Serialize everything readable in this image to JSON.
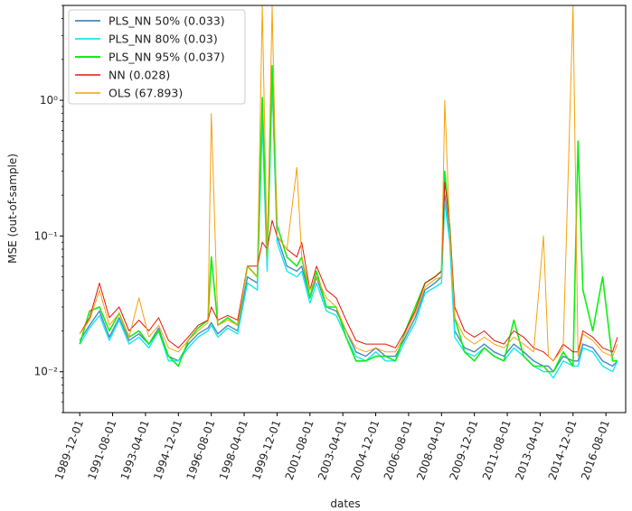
{
  "chart_data": {
    "type": "line",
    "title": "",
    "xlabel": "dates",
    "ylabel": "MSE (out-of-sample)",
    "yscale": "log",
    "ylim": [
      0.005,
      5.0
    ],
    "xlim": [
      "1989-02-01",
      "2017-08-01"
    ],
    "grid": false,
    "legend_position": "top-left",
    "y_ticks": [
      {
        "value": 0.01,
        "label": "10⁻²"
      },
      {
        "value": 0.1,
        "label": "10⁻¹"
      },
      {
        "value": 1,
        "label": "10⁰"
      }
    ],
    "x_ticks": [
      "1989-12-01",
      "1991-08-01",
      "1993-04-01",
      "1994-12-01",
      "1996-08-01",
      "1998-04-01",
      "1999-12-01",
      "2001-08-01",
      "2003-04-01",
      "2004-12-01",
      "2006-08-01",
      "2008-04-01",
      "2009-12-01",
      "2011-08-01",
      "2013-04-01",
      "2014-12-01",
      "2016-08-01"
    ],
    "dates": [
      "1989-12-01",
      "1990-06-01",
      "1990-12-01",
      "1991-06-01",
      "1991-12-01",
      "1992-06-01",
      "1992-12-01",
      "1993-06-01",
      "1993-12-01",
      "1994-06-01",
      "1994-12-01",
      "1995-06-01",
      "1995-12-01",
      "1996-06-01",
      "1996-08-01",
      "1996-12-01",
      "1997-06-01",
      "1997-12-01",
      "1998-06-01",
      "1998-12-01",
      "1999-03-01",
      "1999-06-01",
      "1999-09-01",
      "1999-12-01",
      "2000-06-01",
      "2000-12-01",
      "2001-03-01",
      "2001-08-01",
      "2001-12-01",
      "2002-06-01",
      "2002-12-01",
      "2003-06-01",
      "2003-12-01",
      "2004-06-01",
      "2004-12-01",
      "2005-06-01",
      "2005-12-01",
      "2006-06-01",
      "2006-12-01",
      "2007-06-01",
      "2007-12-01",
      "2008-04-01",
      "2008-06-01",
      "2008-09-01",
      "2008-12-01",
      "2009-06-01",
      "2009-12-01",
      "2010-06-01",
      "2010-12-01",
      "2011-06-01",
      "2011-12-01",
      "2012-06-01",
      "2012-12-01",
      "2013-06-01",
      "2013-09-01",
      "2013-12-01",
      "2014-06-01",
      "2014-12-01",
      "2015-03-01",
      "2015-06-01",
      "2015-12-01",
      "2016-06-01",
      "2016-12-01",
      "2017-03-01"
    ],
    "series": [
      {
        "name": "PLS_NN 50% (0.033)",
        "color": "#4a88c0",
        "width": 1.4,
        "values": [
          0.017,
          0.022,
          0.028,
          0.018,
          0.025,
          0.017,
          0.019,
          0.016,
          0.021,
          0.013,
          0.012,
          0.016,
          0.019,
          0.021,
          0.023,
          0.019,
          0.022,
          0.02,
          0.05,
          0.045,
          0.8,
          0.06,
          1.5,
          0.1,
          0.06,
          0.055,
          0.06,
          0.035,
          0.05,
          0.03,
          0.028,
          0.02,
          0.014,
          0.013,
          0.015,
          0.013,
          0.013,
          0.018,
          0.025,
          0.04,
          0.045,
          0.05,
          0.2,
          0.1,
          0.02,
          0.015,
          0.014,
          0.016,
          0.014,
          0.013,
          0.016,
          0.014,
          0.012,
          0.011,
          0.011,
          0.01,
          0.013,
          0.012,
          0.012,
          0.016,
          0.015,
          0.012,
          0.011,
          0.012
        ]
      },
      {
        "name": "PLS_NN 80% (0.03)",
        "color": "#17e8f2",
        "width": 1.4,
        "values": [
          0.016,
          0.021,
          0.026,
          0.017,
          0.024,
          0.016,
          0.018,
          0.015,
          0.02,
          0.012,
          0.012,
          0.015,
          0.018,
          0.02,
          0.022,
          0.018,
          0.021,
          0.019,
          0.045,
          0.04,
          0.7,
          0.055,
          1.4,
          0.09,
          0.055,
          0.05,
          0.055,
          0.032,
          0.045,
          0.028,
          0.026,
          0.018,
          0.013,
          0.012,
          0.014,
          0.012,
          0.012,
          0.017,
          0.023,
          0.038,
          0.042,
          0.045,
          0.18,
          0.09,
          0.018,
          0.014,
          0.013,
          0.015,
          0.013,
          0.012,
          0.015,
          0.013,
          0.011,
          0.01,
          0.01,
          0.009,
          0.012,
          0.011,
          0.011,
          0.015,
          0.014,
          0.011,
          0.01,
          0.012
        ]
      },
      {
        "name": "PLS_NN 95% (0.037)",
        "color": "#10ee10",
        "width": 1.6,
        "values": [
          0.016,
          0.028,
          0.03,
          0.02,
          0.027,
          0.018,
          0.02,
          0.016,
          0.02,
          0.013,
          0.011,
          0.017,
          0.021,
          0.024,
          0.07,
          0.022,
          0.025,
          0.022,
          0.06,
          0.05,
          1.05,
          0.07,
          1.8,
          0.12,
          0.07,
          0.06,
          0.07,
          0.035,
          0.055,
          0.03,
          0.03,
          0.018,
          0.012,
          0.012,
          0.013,
          0.013,
          0.012,
          0.02,
          0.03,
          0.045,
          0.05,
          0.055,
          0.3,
          0.12,
          0.025,
          0.014,
          0.012,
          0.015,
          0.013,
          0.012,
          0.024,
          0.013,
          0.011,
          0.011,
          0.01,
          0.01,
          0.014,
          0.011,
          0.5,
          0.04,
          0.02,
          0.05,
          0.012,
          0.012
        ]
      },
      {
        "name": "NN (0.028)",
        "color": "#e8140e",
        "width": 1.0,
        "values": [
          0.019,
          0.025,
          0.045,
          0.025,
          0.03,
          0.02,
          0.024,
          0.02,
          0.025,
          0.017,
          0.015,
          0.018,
          0.022,
          0.024,
          0.03,
          0.024,
          0.026,
          0.024,
          0.06,
          0.06,
          0.09,
          0.08,
          0.13,
          0.1,
          0.08,
          0.07,
          0.09,
          0.04,
          0.06,
          0.04,
          0.035,
          0.024,
          0.017,
          0.016,
          0.016,
          0.016,
          0.015,
          0.02,
          0.028,
          0.045,
          0.05,
          0.055,
          0.25,
          0.12,
          0.03,
          0.02,
          0.018,
          0.02,
          0.017,
          0.016,
          0.02,
          0.018,
          0.015,
          0.014,
          0.013,
          0.012,
          0.016,
          0.014,
          0.014,
          0.02,
          0.018,
          0.015,
          0.014,
          0.018
        ]
      },
      {
        "name": "OLS (67.893)",
        "color": "#f5a20a",
        "width": 1.0,
        "values": [
          0.019,
          0.024,
          0.04,
          0.022,
          0.027,
          0.018,
          0.035,
          0.018,
          0.022,
          0.015,
          0.014,
          0.017,
          0.02,
          0.023,
          0.8,
          0.022,
          0.024,
          0.022,
          0.06,
          0.05,
          5.0,
          0.07,
          5.0,
          0.1,
          0.08,
          0.32,
          0.07,
          0.04,
          0.05,
          0.035,
          0.03,
          0.02,
          0.015,
          0.014,
          0.015,
          0.014,
          0.014,
          0.019,
          0.027,
          0.042,
          0.048,
          0.05,
          1.0,
          0.11,
          0.025,
          0.018,
          0.016,
          0.018,
          0.016,
          0.015,
          0.018,
          0.016,
          0.014,
          0.1,
          0.013,
          0.012,
          0.015,
          5.0,
          0.013,
          0.019,
          0.017,
          0.014,
          0.013,
          0.016
        ]
      }
    ]
  }
}
